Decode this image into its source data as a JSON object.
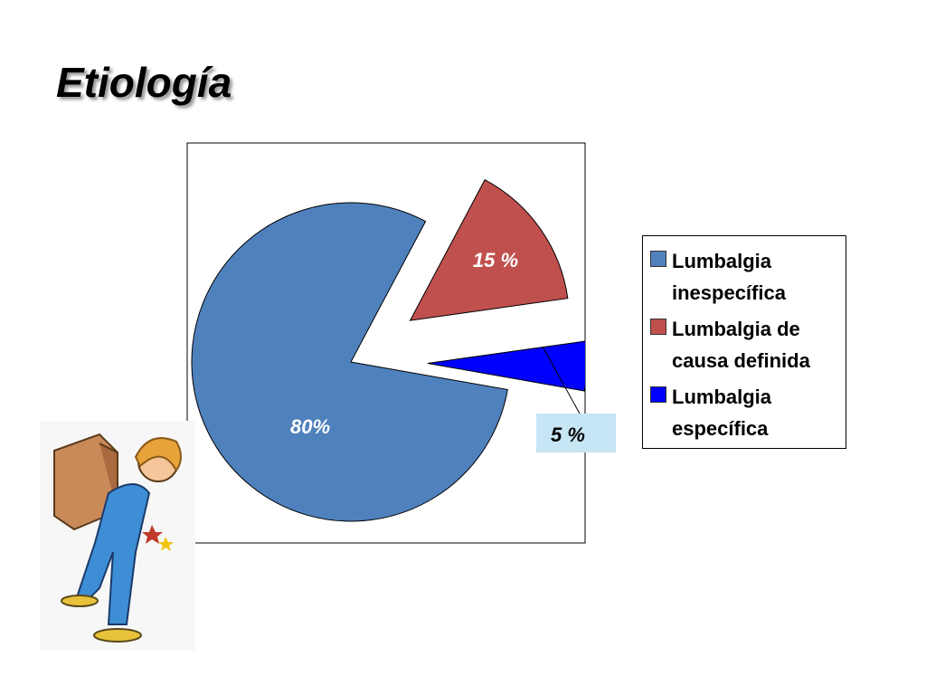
{
  "chart_data": {
    "type": "pie",
    "title": "Etiología",
    "categories": [
      "Lumbalgia inespecífica",
      "Lumbalgia de causa definida",
      "Lumbalgia específica"
    ],
    "values": [
      80,
      15,
      5
    ],
    "value_labels": [
      "80%",
      "15 %",
      "5 %"
    ],
    "colors": [
      "#4f81bd",
      "#c0504d",
      "#0000ff"
    ],
    "legend": "right"
  }
}
